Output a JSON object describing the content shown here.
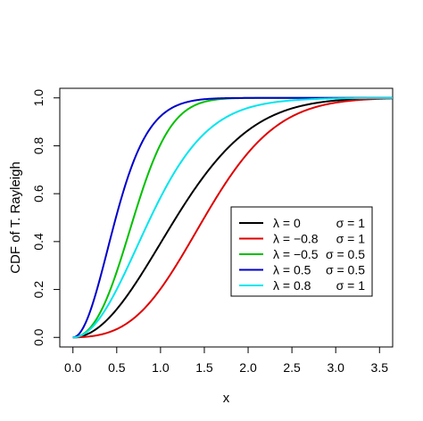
{
  "chart_data": {
    "type": "line",
    "xlabel": "x",
    "ylabel": "CDF of T. Rayleigh",
    "xlim": [
      -0.15,
      3.65
    ],
    "ylim": [
      -0.04,
      1.04
    ],
    "x_ticks": [
      "0.0",
      "0.5",
      "1.0",
      "1.5",
      "2.0",
      "2.5",
      "3.0",
      "3.5"
    ],
    "y_ticks": [
      "0.0",
      "0.2",
      "0.4",
      "0.6",
      "0.8",
      "1.0"
    ],
    "legend_position": "center-right",
    "series": [
      {
        "lambda_label": "λ = 0",
        "sigma_label": "σ = 1",
        "lambda": 0,
        "sigma": 1,
        "color": "#000000"
      },
      {
        "lambda_label": "λ = −0.8",
        "sigma_label": "σ = 1",
        "lambda": -0.8,
        "sigma": 1,
        "color": "#DF0000"
      },
      {
        "lambda_label": "λ = −0.5",
        "sigma_label": "σ = 0.5",
        "lambda": -0.5,
        "sigma": 0.5,
        "color": "#00C000"
      },
      {
        "lambda_label": "λ = 0.5",
        "sigma_label": "σ = 0.5",
        "lambda": 0.5,
        "sigma": 0.5,
        "color": "#0000CC"
      },
      {
        "lambda_label": "λ = 0.8",
        "sigma_label": "σ = 1",
        "lambda": 0.8,
        "sigma": 1,
        "color": "#00E5EE"
      }
    ]
  }
}
